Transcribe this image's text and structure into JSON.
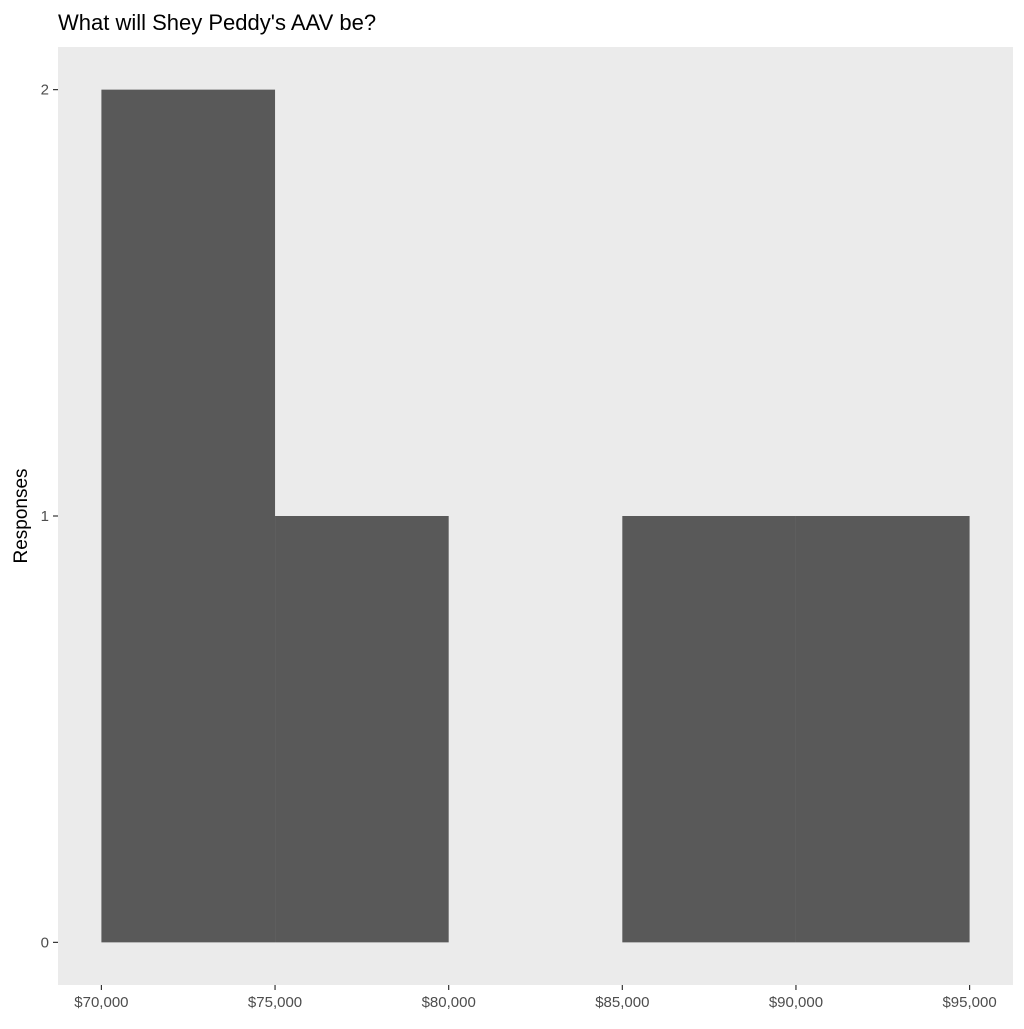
{
  "chart_data": {
    "type": "bar",
    "title": "What will Shey Peddy's AAV be?",
    "xlabel": "",
    "ylabel": "Responses",
    "bins": [
      {
        "start": 70000,
        "end": 75000,
        "count": 2
      },
      {
        "start": 75000,
        "end": 80000,
        "count": 1
      },
      {
        "start": 80000,
        "end": 85000,
        "count": 0
      },
      {
        "start": 85000,
        "end": 90000,
        "count": 1
      },
      {
        "start": 90000,
        "end": 95000,
        "count": 1
      }
    ],
    "xticks": [
      70000,
      75000,
      80000,
      85000,
      90000,
      95000
    ],
    "xtick_labels": [
      "$70,000",
      "$75,000",
      "$80,000",
      "$85,000",
      "$90,000",
      "$95,000"
    ],
    "yticks": [
      0,
      1,
      2
    ],
    "ytick_labels": [
      "0",
      "1",
      "2"
    ],
    "xlim": [
      68750,
      96250
    ],
    "ylim": [
      -0.1,
      2.1
    ],
    "grid": false,
    "colors": {
      "bar": "#595959",
      "panel": "#EBEBEB"
    }
  }
}
